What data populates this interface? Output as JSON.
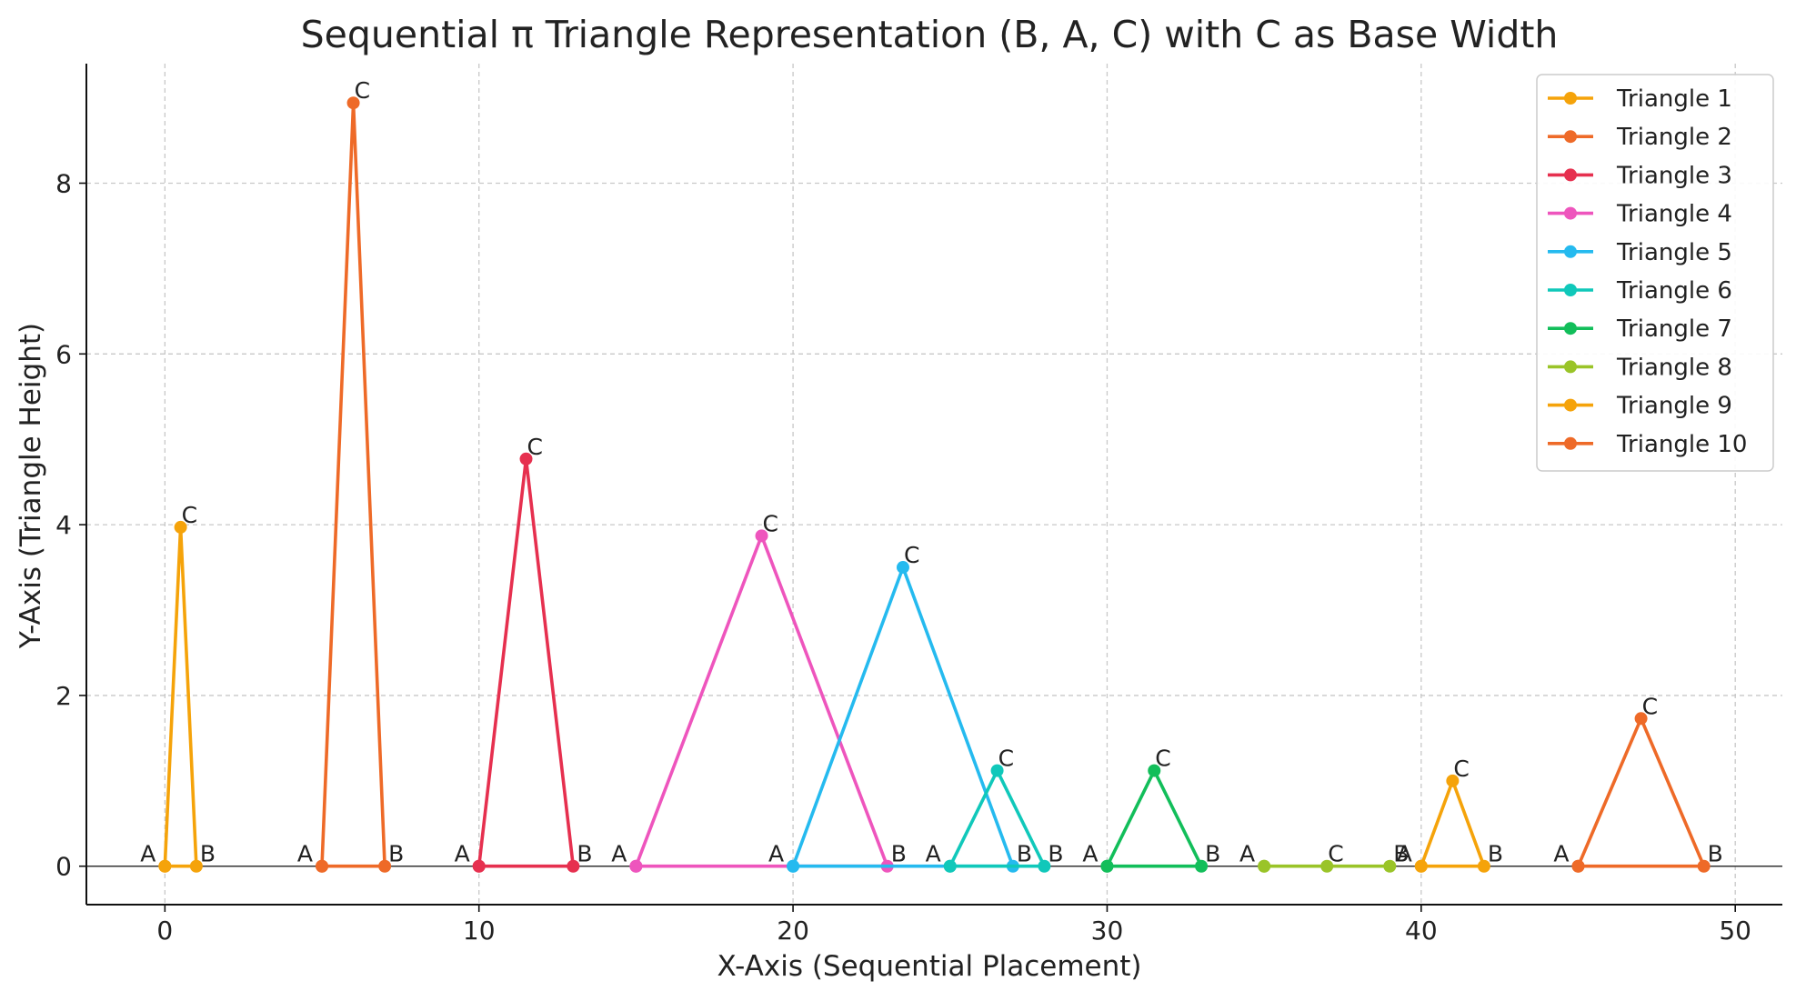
{
  "chart_data": {
    "type": "line",
    "title": "Sequential π Triangle Representation (B, A, C) with C as Base Width",
    "xlabel": "X-Axis (Sequential Placement)",
    "ylabel": "Y-Axis (Triangle Height)",
    "xlim": [
      -2.5,
      51.5
    ],
    "ylim": [
      -0.45,
      9.4
    ],
    "xticks": [
      0,
      10,
      20,
      30,
      40,
      50
    ],
    "yticks": [
      0,
      2,
      4,
      6,
      8
    ],
    "grid": true,
    "legend_position": "top-right",
    "point_labels": [
      "A",
      "B",
      "C"
    ],
    "series": [
      {
        "name": "Triangle 1",
        "color": "#F5A30A",
        "points": [
          {
            "x": 0,
            "y": 0
          },
          {
            "x": 1,
            "y": 0
          },
          {
            "x": 0.5,
            "y": 3.97
          },
          {
            "x": 0,
            "y": 0
          }
        ]
      },
      {
        "name": "Triangle 2",
        "color": "#EE6A28",
        "points": [
          {
            "x": 5,
            "y": 0
          },
          {
            "x": 7,
            "y": 0
          },
          {
            "x": 6,
            "y": 8.94
          },
          {
            "x": 5,
            "y": 0
          }
        ]
      },
      {
        "name": "Triangle 3",
        "color": "#E6304F",
        "points": [
          {
            "x": 10,
            "y": 0
          },
          {
            "x": 13,
            "y": 0
          },
          {
            "x": 11.5,
            "y": 4.77
          },
          {
            "x": 10,
            "y": 0
          }
        ]
      },
      {
        "name": "Triangle 4",
        "color": "#EE55BD",
        "points": [
          {
            "x": 15,
            "y": 0
          },
          {
            "x": 23,
            "y": 0
          },
          {
            "x": 19,
            "y": 3.87
          },
          {
            "x": 15,
            "y": 0
          }
        ]
      },
      {
        "name": "Triangle 5",
        "color": "#25BAEF",
        "points": [
          {
            "x": 20,
            "y": 0
          },
          {
            "x": 27,
            "y": 0
          },
          {
            "x": 23.5,
            "y": 3.5
          },
          {
            "x": 20,
            "y": 0
          }
        ]
      },
      {
        "name": "Triangle 6",
        "color": "#10C8BA",
        "points": [
          {
            "x": 25,
            "y": 0
          },
          {
            "x": 28,
            "y": 0
          },
          {
            "x": 26.5,
            "y": 1.12
          },
          {
            "x": 25,
            "y": 0
          }
        ]
      },
      {
        "name": "Triangle 7",
        "color": "#12BE5A",
        "points": [
          {
            "x": 30,
            "y": 0
          },
          {
            "x": 33,
            "y": 0
          },
          {
            "x": 31.5,
            "y": 1.12
          },
          {
            "x": 30,
            "y": 0
          }
        ]
      },
      {
        "name": "Triangle 8",
        "color": "#9AC428",
        "points": [
          {
            "x": 35,
            "y": 0
          },
          {
            "x": 39,
            "y": 0
          },
          {
            "x": 37,
            "y": 0
          },
          {
            "x": 35,
            "y": 0
          }
        ]
      },
      {
        "name": "Triangle 9",
        "color": "#F5A30A",
        "points": [
          {
            "x": 40,
            "y": 0
          },
          {
            "x": 42,
            "y": 0
          },
          {
            "x": 41,
            "y": 1.0
          },
          {
            "x": 40,
            "y": 0
          }
        ]
      },
      {
        "name": "Triangle 10",
        "color": "#EE6A28",
        "points": [
          {
            "x": 45,
            "y": 0
          },
          {
            "x": 49,
            "y": 0
          },
          {
            "x": 47,
            "y": 1.73
          },
          {
            "x": 45,
            "y": 0
          }
        ]
      }
    ]
  }
}
